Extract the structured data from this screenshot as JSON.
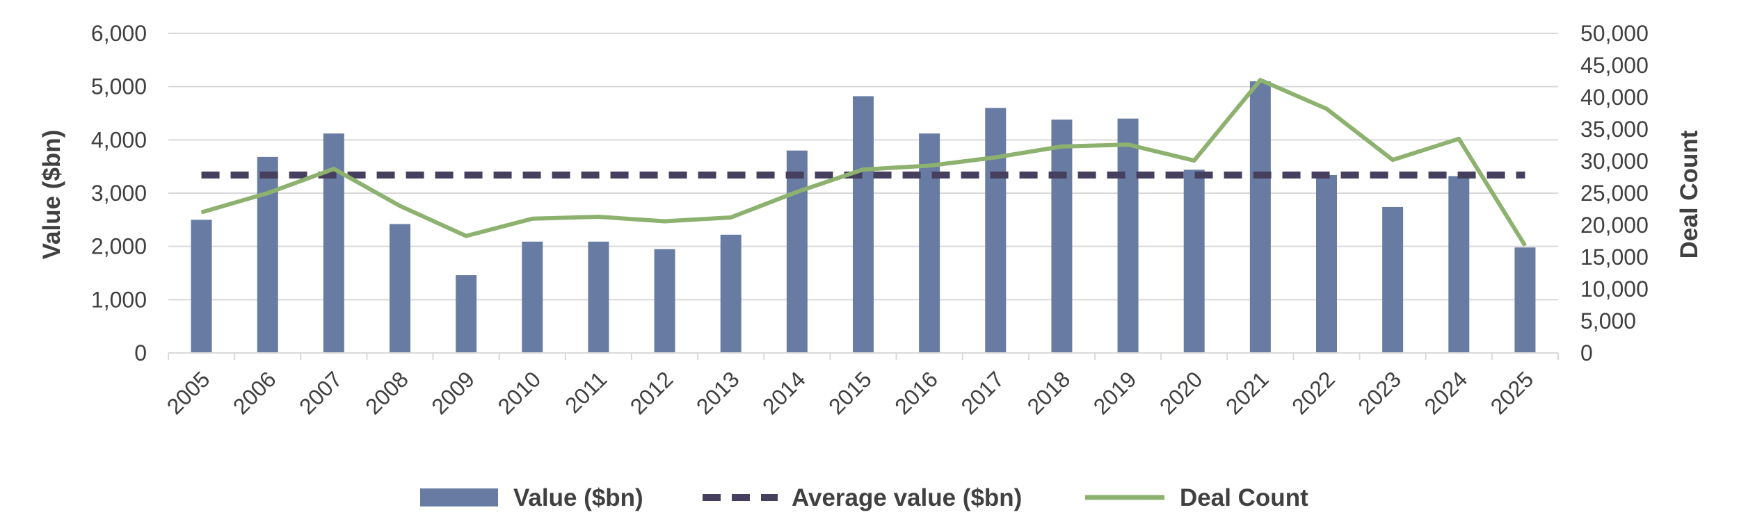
{
  "chart_data": {
    "type": "bar",
    "title": "",
    "categories": [
      "2005",
      "2006",
      "2007",
      "2008",
      "2009",
      "2010",
      "2011",
      "2012",
      "2013",
      "2014",
      "2015",
      "2016",
      "2017",
      "2018",
      "2019",
      "2020",
      "2021",
      "2022",
      "2023",
      "2024",
      "2025"
    ],
    "series": [
      {
        "name": "Value ($bn)",
        "type": "bar",
        "axis": "left",
        "color": "#687ca3",
        "values": [
          2500,
          3680,
          4120,
          2420,
          1460,
          2090,
          2090,
          1950,
          2220,
          3800,
          4820,
          4120,
          4600,
          4380,
          4400,
          3440,
          5100,
          3340,
          2740,
          3320,
          1980
        ]
      },
      {
        "name": "Average value ($bn)",
        "type": "line",
        "style": "dashed",
        "axis": "left",
        "color": "#463f5e",
        "values": [
          3340,
          3340,
          3340,
          3340,
          3340,
          3340,
          3340,
          3340,
          3340,
          3340,
          3340,
          3340,
          3340,
          3340,
          3340,
          3340,
          3340,
          3340,
          3340,
          3340,
          3340
        ]
      },
      {
        "name": "Deal Count",
        "type": "line",
        "axis": "right",
        "color": "#8db26f",
        "values": [
          22000,
          25000,
          28800,
          23000,
          18300,
          21000,
          21300,
          20600,
          21200,
          25200,
          28700,
          29300,
          30600,
          32300,
          32600,
          30100,
          42700,
          38200,
          30200,
          33500,
          16800
        ]
      }
    ],
    "y_left": {
      "label": "Value ($bn)",
      "range": [
        0,
        6000
      ],
      "ticks": [
        0,
        1000,
        2000,
        3000,
        4000,
        5000,
        6000
      ],
      "tick_labels": [
        "0",
        "1,000",
        "2,000",
        "3,000",
        "4,000",
        "5,000",
        "6,000"
      ]
    },
    "y_right": {
      "label": "Deal Count",
      "range": [
        0,
        50000
      ],
      "ticks": [
        0,
        5000,
        10000,
        15000,
        20000,
        25000,
        30000,
        35000,
        40000,
        45000,
        50000
      ],
      "tick_labels": [
        "0",
        "5,000",
        "10,000",
        "15,000",
        "20,000",
        "25,000",
        "30,000",
        "35,000",
        "40,000",
        "45,000",
        "50,000"
      ]
    },
    "grid": true,
    "legend_position": "bottom-center",
    "legend": [
      {
        "label": "Value ($bn)",
        "symbol": "bar",
        "color": "#687ca3"
      },
      {
        "label": "Average value ($bn)",
        "symbol": "dash",
        "color": "#463f5e"
      },
      {
        "label": "Deal Count",
        "symbol": "line",
        "color": "#8db26f"
      }
    ]
  }
}
